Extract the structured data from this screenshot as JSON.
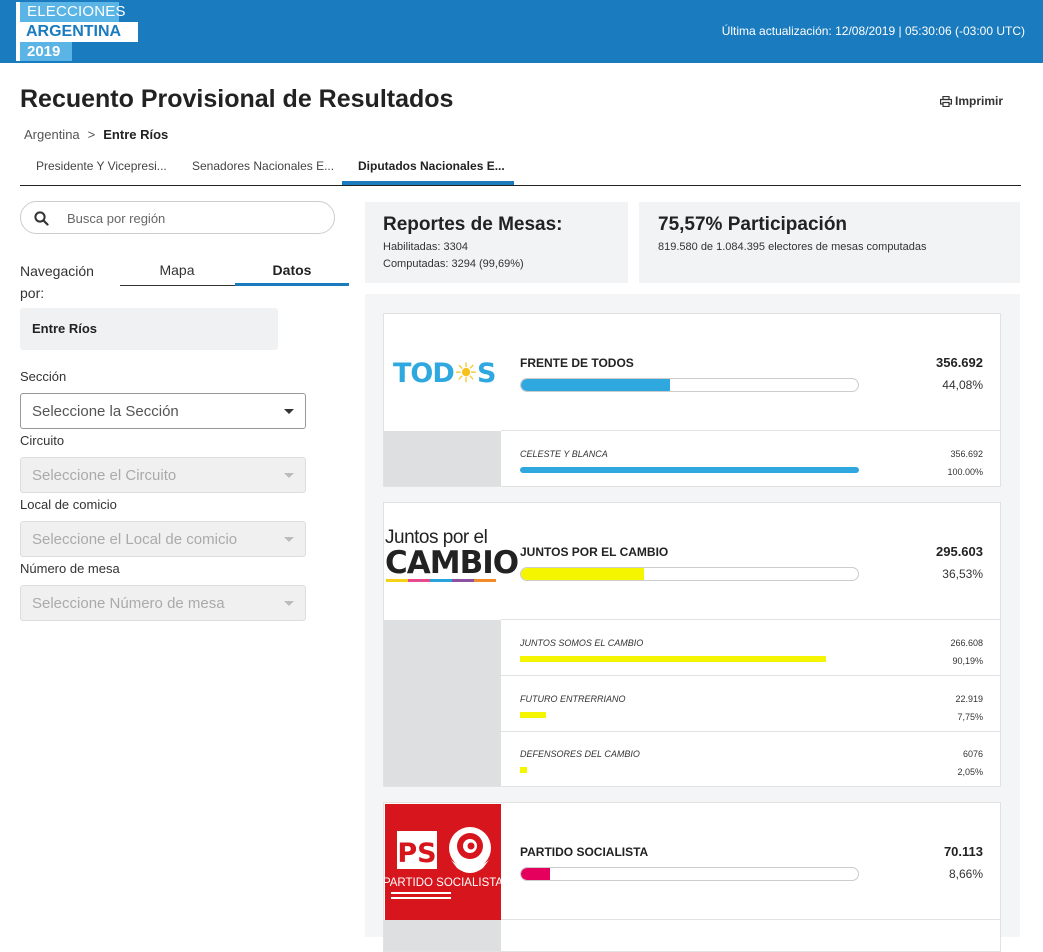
{
  "header": {
    "logo_line1": "ELECCIONES",
    "logo_line2": "ARGENTINA",
    "logo_line3": "2019",
    "update_text": "Última actualización: 12/08/2019 | 05:30:06 (-03:00 UTC)"
  },
  "page": {
    "title": "Recuento Provisional de Resultados",
    "print_label": "Imprimir",
    "breadcrumb": [
      "Argentina",
      ">",
      "Entre Ríos"
    ]
  },
  "tabs": [
    {
      "label": "Presidente Y Vicepresi..."
    },
    {
      "label": "Senadores Nacionales E..."
    },
    {
      "label": "Diputados Nacionales E..."
    }
  ],
  "sidebar": {
    "search_placeholder": "Busca por región",
    "nav_label": "Navegación por:",
    "nav_tabs": [
      "Mapa",
      "Datos"
    ],
    "region": "Entre Ríos",
    "fields": [
      {
        "label": "Sección",
        "placeholder": "Seleccione la Sección"
      },
      {
        "label": "Circuito",
        "placeholder": "Seleccione el Circuito"
      },
      {
        "label": "Local de comicio",
        "placeholder": "Seleccione el Local de comicio"
      },
      {
        "label": "Número de mesa",
        "placeholder": "Seleccione Número de mesa"
      }
    ]
  },
  "stats": {
    "mesas_title": "Reportes de Mesas:",
    "habilitadas": "Habilitadas: 3304",
    "computadas": "Computadas: 3294 (99,69%)",
    "participacion_title": "75,57% Participación",
    "participacion_text": "819.580 de 1.084.395 electores de mesas computadas"
  },
  "parties": [
    {
      "logo_text": [
        "TOD",
        "☀",
        "S"
      ],
      "name": "FRENTE DE TODOS",
      "votes": "356.692",
      "pct": "44,08%",
      "share": 0.4408,
      "color": "#2fa8e0",
      "lists": [
        {
          "name": "CELESTE Y BLANCA",
          "votes": "356.692",
          "pct": "100.00%",
          "share": 1.0
        }
      ]
    },
    {
      "logo_text": [
        "Juntos por el",
        "CAMBIO"
      ],
      "name": "JUNTOS POR EL CAMBIO",
      "votes": "295.603",
      "pct": "36,53%",
      "share": 0.3653,
      "color": "#f5f500",
      "lists": [
        {
          "name": "JUNTOS SOMOS EL CAMBIO",
          "votes": "266.608",
          "pct": "90,19%",
          "share": 0.9019
        },
        {
          "name": "FUTURO ENTRERRIANO",
          "votes": "22.919",
          "pct": "7,75%",
          "share": 0.0775
        },
        {
          "name": "DEFENSORES DEL CAMBIO",
          "votes": "6076",
          "pct": "2,05%",
          "share": 0.0205
        }
      ]
    },
    {
      "logo_text": [
        "PS",
        "PARTIDO SOCIALISTA"
      ],
      "name": "PARTIDO SOCIALISTA",
      "votes": "70.113",
      "pct": "8,66%",
      "share": 0.0866,
      "color": "#e5005e",
      "lists": []
    }
  ]
}
